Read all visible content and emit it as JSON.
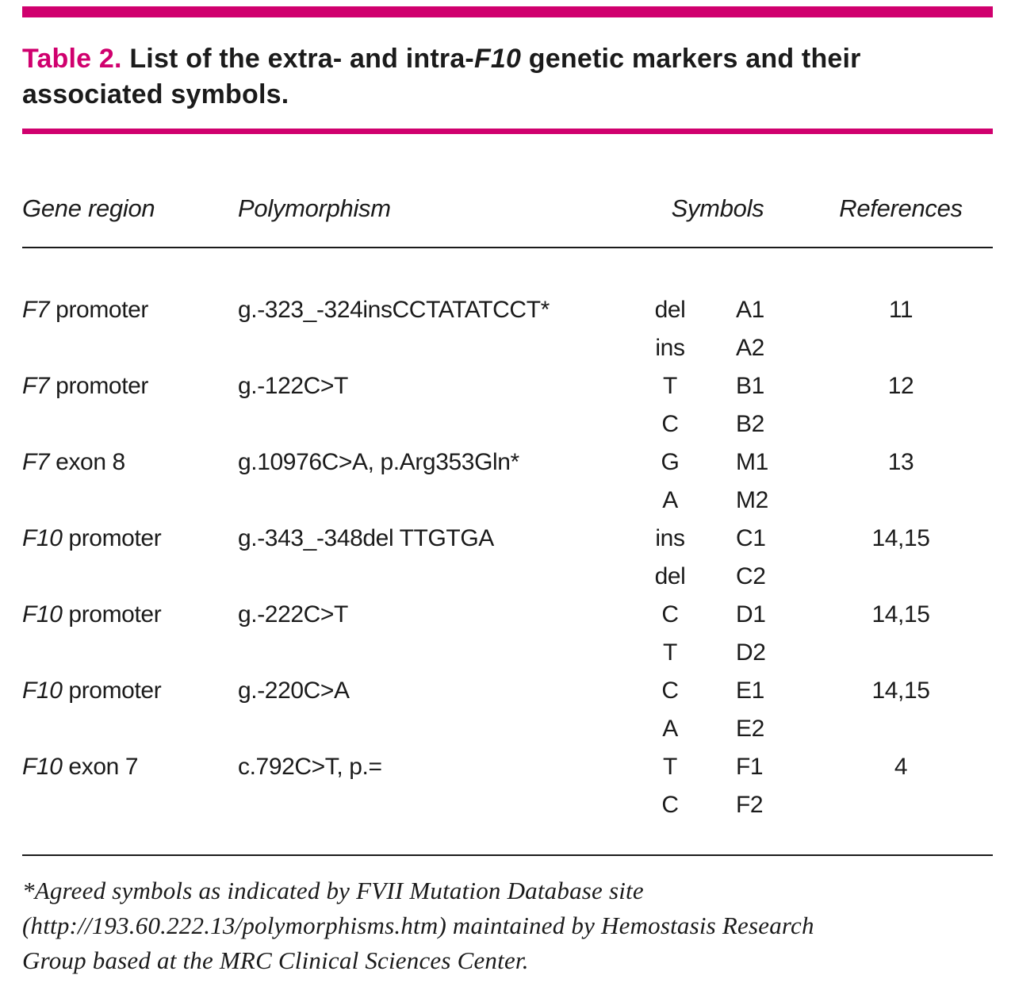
{
  "colors": {
    "accent": "#d0006e",
    "text": "#1b1b1b"
  },
  "title": {
    "label": "Table 2.",
    "pre": " List of the extra- and intra-",
    "italic": "F10",
    "post": " genetic markers and their associated symbols."
  },
  "table": {
    "headers": {
      "gene_region": "Gene region",
      "polymorphism": "Polymorphism",
      "symbols": "Symbols",
      "references": "References"
    },
    "rows": [
      {
        "gene_italic": "F7",
        "gene_rest": " promoter",
        "polymorphism": "g.-323_-324insCCTATATCCT*",
        "alleles": [
          "del",
          "ins"
        ],
        "symbols": [
          "A1",
          "A2"
        ],
        "reference": "11"
      },
      {
        "gene_italic": "F7",
        "gene_rest": " promoter",
        "polymorphism": "g.-122C>T",
        "alleles": [
          "T",
          "C"
        ],
        "symbols": [
          "B1",
          "B2"
        ],
        "reference": "12"
      },
      {
        "gene_italic": "F7",
        "gene_rest": " exon 8",
        "polymorphism": "g.10976C>A, p.Arg353Gln*",
        "alleles": [
          "G",
          "A"
        ],
        "symbols": [
          "M1",
          "M2"
        ],
        "reference": "13"
      },
      {
        "gene_italic": "F10",
        "gene_rest": " promoter",
        "polymorphism": "g.-343_-348del TTGTGA",
        "alleles": [
          "ins",
          "del"
        ],
        "symbols": [
          "C1",
          "C2"
        ],
        "reference": "14,15"
      },
      {
        "gene_italic": "F10",
        "gene_rest": " promoter",
        "polymorphism": "g.-222C>T",
        "alleles": [
          "C",
          "T"
        ],
        "symbols": [
          "D1",
          "D2"
        ],
        "reference": "14,15"
      },
      {
        "gene_italic": "F10",
        "gene_rest": " promoter",
        "polymorphism": "g.-220C>A",
        "alleles": [
          "C",
          "A"
        ],
        "symbols": [
          "E1",
          "E2"
        ],
        "reference": "14,15"
      },
      {
        "gene_italic": "F10",
        "gene_rest": " exon 7",
        "polymorphism": "c.792C>T, p.=",
        "alleles": [
          "T",
          "C"
        ],
        "symbols": [
          "F1",
          "F2"
        ],
        "reference": "4"
      }
    ]
  },
  "footnote": "*Agreed symbols as indicated by FVII Mutation Database site\n(http://193.60.222.13/polymorphisms.htm) maintained by Hemostasis Research\nGroup based at the MRC Clinical Sciences Center."
}
